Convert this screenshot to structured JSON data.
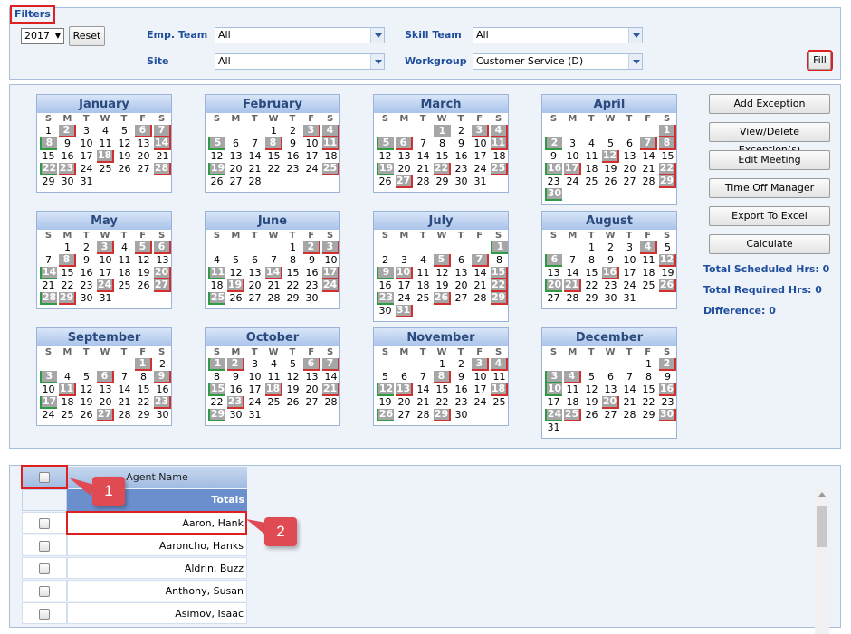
{
  "filters": {
    "legend": "Filters",
    "year": "2017",
    "reset_label": "Reset",
    "emp_team_label": "Emp. Team",
    "emp_team_value": "All",
    "skill_team_label": "Skill Team",
    "skill_team_value": "All",
    "site_label": "Site",
    "site_value": "All",
    "workgroup_label": "Workgroup",
    "workgroup_value": "Customer Service (D)",
    "fill_label": "Fill"
  },
  "calendar": {
    "dow": [
      "S",
      "M",
      "T",
      "W",
      "T",
      "F",
      "S"
    ],
    "months": [
      {
        "name": "January",
        "offset": 0,
        "days": 31,
        "marked": {
          "2": "r",
          "6": "r",
          "7": "r",
          "8": "g",
          "14": "r",
          "18": "r",
          "22": "g",
          "23": "r",
          "28": "r"
        }
      },
      {
        "name": "February",
        "offset": 3,
        "days": 28,
        "marked": {
          "3": "r",
          "4": "r",
          "5": "g",
          "8": "r",
          "11": "r",
          "19": "g",
          "25": "r"
        }
      },
      {
        "name": "March",
        "offset": 3,
        "days": 31,
        "marked": {
          "1": "n",
          "3": "r",
          "4": "r",
          "5": "g",
          "6": "r",
          "11": "r",
          "19": "g",
          "22": "r",
          "25": "r",
          "27": "r"
        }
      },
      {
        "name": "April",
        "offset": 6,
        "days": 30,
        "marked": {
          "1": "r",
          "2": "g",
          "7": "r",
          "8": "r",
          "12": "r",
          "16": "g",
          "17": "r",
          "22": "r",
          "29": "r",
          "30": "g"
        }
      },
      {
        "name": "May",
        "offset": 1,
        "days": 31,
        "marked": {
          "3": "r",
          "5": "r",
          "6": "r",
          "8": "r",
          "14": "g",
          "20": "r",
          "24": "r",
          "27": "r",
          "28": "g",
          "29": "r"
        }
      },
      {
        "name": "June",
        "offset": 4,
        "days": 30,
        "marked": {
          "2": "r",
          "3": "r",
          "11": "g",
          "14": "r",
          "17": "r",
          "19": "r",
          "24": "r",
          "25": "g"
        }
      },
      {
        "name": "July",
        "offset": 6,
        "days": 31,
        "marked": {
          "1": "g",
          "5": "r",
          "7": "r",
          "9": "g",
          "10": "r",
          "15": "r",
          "22": "r",
          "23": "g",
          "26": "r",
          "29": "r",
          "31": "r"
        }
      },
      {
        "name": "August",
        "offset": 2,
        "days": 31,
        "marked": {
          "4": "r",
          "6": "g",
          "12": "r",
          "16": "r",
          "20": "g",
          "21": "r",
          "26": "r"
        }
      },
      {
        "name": "September",
        "offset": 5,
        "days": 30,
        "marked": {
          "1": "r",
          "3": "g",
          "6": "r",
          "9": "r",
          "11": "r",
          "17": "g",
          "23": "r",
          "27": "r"
        }
      },
      {
        "name": "October",
        "offset": 0,
        "days": 31,
        "marked": {
          "1": "g",
          "2": "r",
          "6": "r",
          "7": "r",
          "15": "g",
          "18": "r",
          "21": "r",
          "23": "r",
          "29": "g"
        }
      },
      {
        "name": "November",
        "offset": 3,
        "days": 30,
        "marked": {
          "3": "r",
          "4": "r",
          "8": "r",
          "12": "g",
          "13": "r",
          "18": "r",
          "26": "g",
          "29": "r"
        }
      },
      {
        "name": "December",
        "offset": 5,
        "days": 31,
        "marked": {
          "2": "r",
          "3": "g",
          "4": "r",
          "10": "g",
          "16": "r",
          "20": "r",
          "24": "g",
          "25": "r",
          "30": "r"
        }
      }
    ]
  },
  "actions": {
    "add_exception": "Add Exception",
    "view_delete": "View/Delete Exception(s)",
    "edit_meeting": "Edit Meeting",
    "time_off": "Time Off Manager",
    "export": "Export To Excel",
    "calculate": "Calculate",
    "total_scheduled": "Total Scheduled Hrs: 0",
    "total_required": "Total Required Hrs: 0",
    "difference": "Difference: 0"
  },
  "grid": {
    "header_name": "Agent Name",
    "totals_label": "Totals",
    "agents": [
      "Aaron, Hank",
      "Aaroncho, Hanks",
      "Aldrin, Buzz",
      "Anthony, Susan",
      "Asimov, Isaac"
    ]
  },
  "callouts": [
    "1",
    "2"
  ]
}
